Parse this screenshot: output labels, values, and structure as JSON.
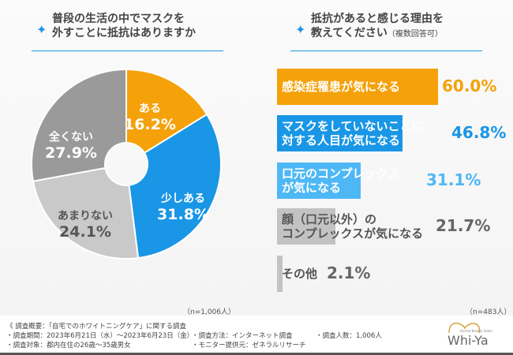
{
  "left": {
    "title_line1": "普段の生活の中でマスクを",
    "title_line2": "外すことに抵抗はありますか",
    "n": "（n=1,006人）"
  },
  "right": {
    "title_line1": "抵抗があると感じる理由を",
    "title_line2": "教えてください",
    "title_note": "（複数回答可）",
    "n": "（n=483人）"
  },
  "chart_data": [
    {
      "type": "pie",
      "donut": true,
      "categories": [
        "ある",
        "少しある",
        "あまりない",
        "全くない"
      ],
      "values": [
        16.2,
        31.8,
        24.1,
        27.9
      ],
      "value_labels": [
        "16.2%",
        "31.8%",
        "24.1%",
        "27.9%"
      ],
      "colors": [
        "#f5a10a",
        "#1996e5",
        "#c9c9c9",
        "#9a9a9a"
      ],
      "start": "top",
      "direction": "clockwise"
    },
    {
      "type": "bar",
      "orientation": "horizontal",
      "categories": [
        "感染症罹患が気になる",
        "マスクをしていないことに対する人目が気になる",
        "口元のコンプレックスが気になる",
        "顔（口元以外）のコンプレックスが気になる",
        "その他"
      ],
      "label_lines": [
        [
          "感染症罹患が気になる"
        ],
        [
          "マスクをしていないことに",
          "対する人目が気になる"
        ],
        [
          "口元のコンプレックス",
          "が気になる"
        ],
        [
          "顔（口元以外）の",
          "コンプレックスが気になる"
        ],
        [
          "その他"
        ]
      ],
      "values": [
        60.0,
        46.8,
        31.1,
        21.7,
        2.1
      ],
      "value_labels": [
        "60.0%",
        "46.8%",
        "31.1%",
        "21.7%",
        "2.1%"
      ],
      "colors": [
        "#f5a10a",
        "#1996e5",
        "#4db8f5",
        "#c3c3c3",
        "#c3c3c3"
      ],
      "label_colors": [
        "#ffffff",
        "#ffffff",
        "#ffffff",
        "#555555",
        "#555555"
      ],
      "value_colors": [
        "#f5a10a",
        "#1996e5",
        "#4db8f5",
        "#666666",
        "#666666"
      ]
    }
  ],
  "footer": {
    "summary": "《 調査概要：「自宅でのホワイトニングケア」に関する調査",
    "period": "・調査期間：2023年6月21日（水）～2023年6月23日（金）",
    "target": "・調査対象：都内在住の26歳～35歳男女",
    "method": "・調査方法：インターネット調査",
    "provider": "・モニター提供元：ゼネラルリサーチ",
    "count": "・調査人数：1,006人",
    "logo": "Whi-Ya",
    "logo_sub": "Dental Beauty Salon"
  }
}
